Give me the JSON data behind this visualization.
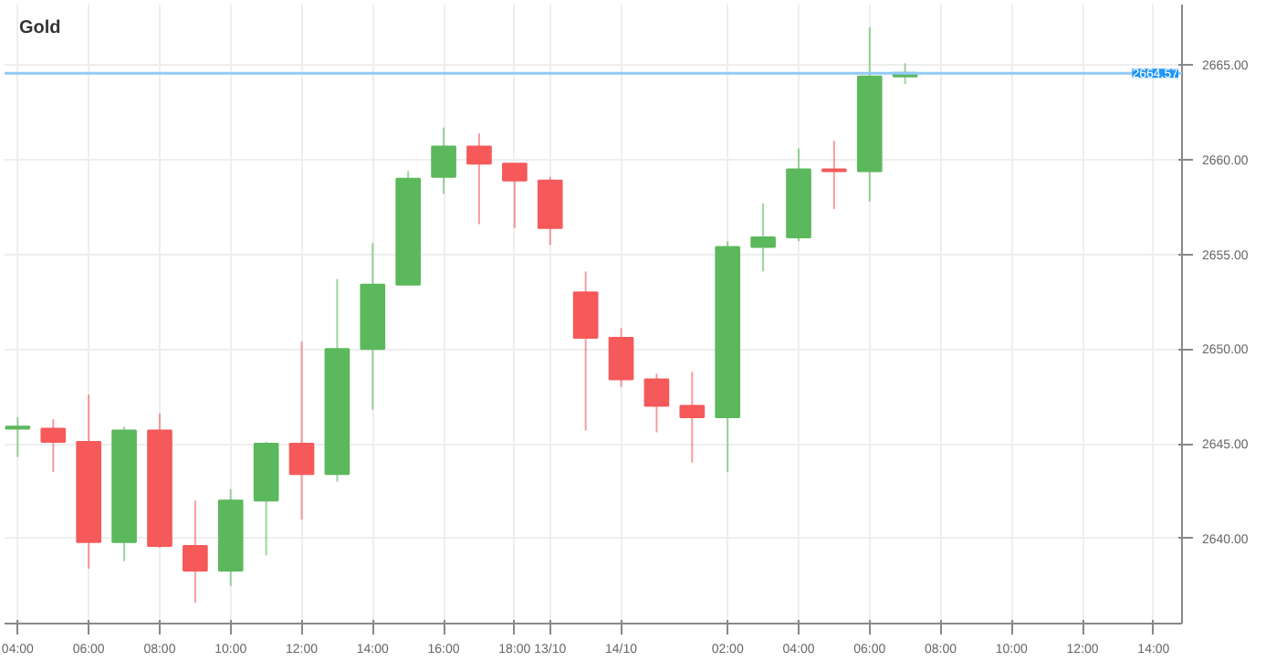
{
  "chart_data": {
    "type": "candlestick",
    "title": "Gold",
    "categories": [
      "04:00",
      null,
      "06:00",
      null,
      "08:00",
      null,
      "10:00",
      null,
      "12:00",
      null,
      "14:00",
      null,
      "16:00",
      null,
      "18:00",
      "13/10",
      null,
      "14/10",
      null,
      null,
      "02:00",
      null,
      "04:00",
      null,
      "06:00",
      null,
      "08:00",
      null,
      "10:00",
      null,
      "12:00",
      null,
      "14:00"
    ],
    "ohlc": [
      [
        2645.8,
        2646.4,
        2644.3,
        2645.9
      ],
      [
        2645.8,
        2646.3,
        2643.5,
        2645.1
      ],
      [
        2645.1,
        2647.6,
        2638.4,
        2639.8
      ],
      [
        2639.8,
        2645.9,
        2638.8,
        2645.7
      ],
      [
        2645.7,
        2646.6,
        2639.5,
        2639.6
      ],
      [
        2639.6,
        2642.0,
        2636.6,
        2638.3
      ],
      [
        2638.3,
        2642.6,
        2637.5,
        2642.0
      ],
      [
        2642.0,
        2645.1,
        2639.1,
        2645.0
      ],
      [
        2645.0,
        2650.4,
        2641.0,
        2643.4
      ],
      [
        2643.4,
        2653.7,
        2643.0,
        2650.0
      ],
      [
        2650.0,
        2655.6,
        2646.8,
        2653.4
      ],
      [
        2653.4,
        2659.4,
        2653.4,
        2659.0
      ],
      [
        2659.1,
        2661.7,
        2658.2,
        2660.7
      ],
      [
        2660.7,
        2661.4,
        2656.6,
        2659.8
      ],
      [
        2659.8,
        2659.8,
        2656.4,
        2658.9
      ],
      [
        2658.9,
        2659.1,
        2655.5,
        2656.4
      ],
      [
        2653.0,
        2654.1,
        2645.7,
        2650.6
      ],
      [
        2650.6,
        2651.1,
        2648.0,
        2648.4
      ],
      [
        2648.4,
        2648.7,
        2645.6,
        2647.0
      ],
      [
        2647.0,
        2648.8,
        2644.0,
        2646.4
      ],
      [
        2646.4,
        2655.7,
        2643.5,
        2655.4
      ],
      [
        2655.4,
        2657.7,
        2654.1,
        2655.9
      ],
      [
        2655.9,
        2660.6,
        2655.7,
        2659.5
      ],
      [
        2659.5,
        2661.0,
        2657.4,
        2659.4
      ],
      [
        2659.4,
        2667.0,
        2657.8,
        2664.4
      ],
      [
        2664.4,
        2665.1,
        2664.0,
        2664.6
      ],
      null,
      null,
      null,
      null,
      null,
      null,
      null
    ],
    "colors": [
      "#5cb85c",
      "#f5595a",
      "#f5595a",
      "#5cb85c",
      "#f5595a",
      "#f5595a",
      "#5cb85c",
      "#5cb85c",
      "#f5595a",
      "#5cb85c",
      "#5cb85c",
      "#5cb85c",
      "#5cb85c",
      "#f5595a",
      "#f5595a",
      "#f5595a",
      "#f5595a",
      "#f5595a",
      "#f5595a",
      "#f5595a",
      "#5cb85c",
      "#5cb85c",
      "#5cb85c",
      "#f5595a",
      "#5cb85c",
      "#5cb85c",
      null,
      null,
      null,
      null,
      null,
      null,
      null
    ],
    "ylim": [
      2635.5,
      2668.2
    ],
    "yticks": [
      {
        "value": 2640,
        "label": "2640.00"
      },
      {
        "value": 2645,
        "label": "2645.00"
      },
      {
        "value": 2650,
        "label": "2650.00"
      },
      {
        "value": 2655,
        "label": "2655.00"
      },
      {
        "value": 2660,
        "label": "2660.00"
      },
      {
        "value": 2665,
        "label": "2665.00"
      }
    ],
    "ref_lines": [
      {
        "axis": "y",
        "value": 2664.57,
        "label": "2664.57",
        "color": "#90caf9"
      }
    ],
    "grid": true
  }
}
